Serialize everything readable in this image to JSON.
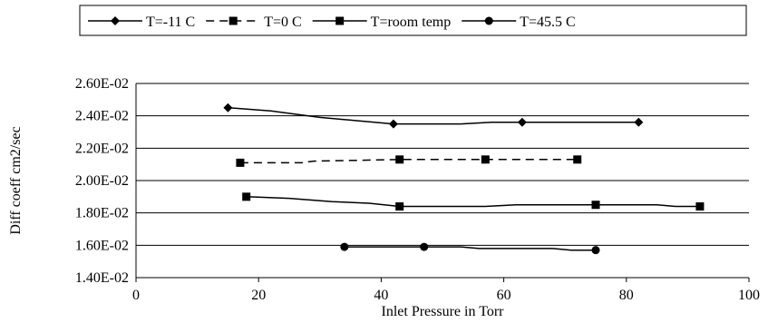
{
  "chart_data": {
    "type": "line",
    "title": "",
    "xlabel": "Inlet Pressure in Torr",
    "ylabel": "Diff coeff cm2/sec",
    "xlim": [
      0,
      100
    ],
    "ylim": [
      0.014,
      0.026
    ],
    "x_ticks": [
      0,
      20,
      40,
      60,
      80,
      100
    ],
    "x_tick_labels": [
      "0",
      "20",
      "40",
      "60",
      "80",
      "100"
    ],
    "y_ticks": [
      0.014,
      0.016,
      0.018,
      0.02,
      0.022,
      0.024,
      0.026
    ],
    "y_tick_labels": [
      "1.40E-02",
      "1.60E-02",
      "1.80E-02",
      "2.00E-02",
      "2.20E-02",
      "2.40E-02",
      "2.60E-02"
    ],
    "grid": "horizontal",
    "legend_position": "top",
    "series": [
      {
        "name": "T=-11 C",
        "marker": "diamond",
        "line": "solid",
        "x": [
          15,
          42,
          63,
          82
        ],
        "y": [
          0.0245,
          0.0235,
          0.0236,
          0.0236
        ],
        "curve": [
          [
            15,
            0.0245
          ],
          [
            22,
            0.0243
          ],
          [
            30,
            0.0239
          ],
          [
            36,
            0.0237
          ],
          [
            42,
            0.0235
          ],
          [
            53,
            0.0235
          ],
          [
            58,
            0.0236
          ],
          [
            63,
            0.0236
          ],
          [
            82,
            0.0236
          ]
        ]
      },
      {
        "name": "T=0 C",
        "marker": "square",
        "line": "dashed",
        "x": [
          17,
          43,
          57,
          72
        ],
        "y": [
          0.0211,
          0.0213,
          0.0213,
          0.0213
        ],
        "curve": [
          [
            17,
            0.0211
          ],
          [
            27,
            0.0211
          ],
          [
            29,
            0.0212
          ],
          [
            43,
            0.0213
          ],
          [
            57,
            0.0213
          ],
          [
            72,
            0.0213
          ]
        ]
      },
      {
        "name": "T=room temp",
        "marker": "square",
        "line": "solid",
        "x": [
          18,
          43,
          75,
          92
        ],
        "y": [
          0.019,
          0.0184,
          0.0185,
          0.0184
        ],
        "curve": [
          [
            18,
            0.019
          ],
          [
            25,
            0.0189
          ],
          [
            32,
            0.0187
          ],
          [
            38,
            0.0186
          ],
          [
            43,
            0.0184
          ],
          [
            57,
            0.0184
          ],
          [
            62,
            0.0185
          ],
          [
            75,
            0.0185
          ],
          [
            85,
            0.0185
          ],
          [
            88,
            0.0184
          ],
          [
            92,
            0.0184
          ]
        ]
      },
      {
        "name": "T=45.5 C",
        "marker": "circle",
        "line": "solid",
        "x": [
          34,
          47,
          75
        ],
        "y": [
          0.0159,
          0.0159,
          0.0157
        ],
        "curve": [
          [
            34,
            0.0159
          ],
          [
            47,
            0.0159
          ],
          [
            53,
            0.0159
          ],
          [
            56,
            0.0158
          ],
          [
            68,
            0.0158
          ],
          [
            71,
            0.0157
          ],
          [
            75,
            0.0157
          ]
        ]
      }
    ]
  }
}
